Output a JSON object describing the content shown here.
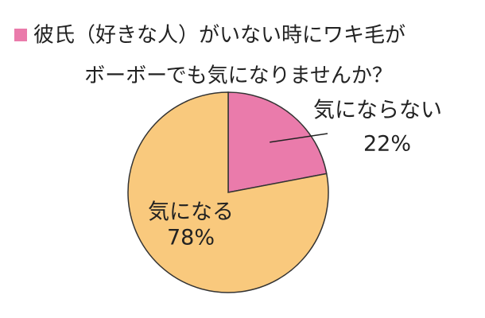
{
  "chart_data": {
    "type": "pie",
    "title": [
      "彼氏（好きな人）がいない時にワキ毛が",
      "ボーボーでも気になりませんか？"
    ],
    "categories": [
      "気にならない",
      "気になる"
    ],
    "values": [
      22,
      78
    ],
    "value_labels": [
      "22%",
      "78%"
    ],
    "colors": [
      "#ea7bab",
      "#f9c97d"
    ],
    "title_marker_color": "#ea7bab"
  }
}
